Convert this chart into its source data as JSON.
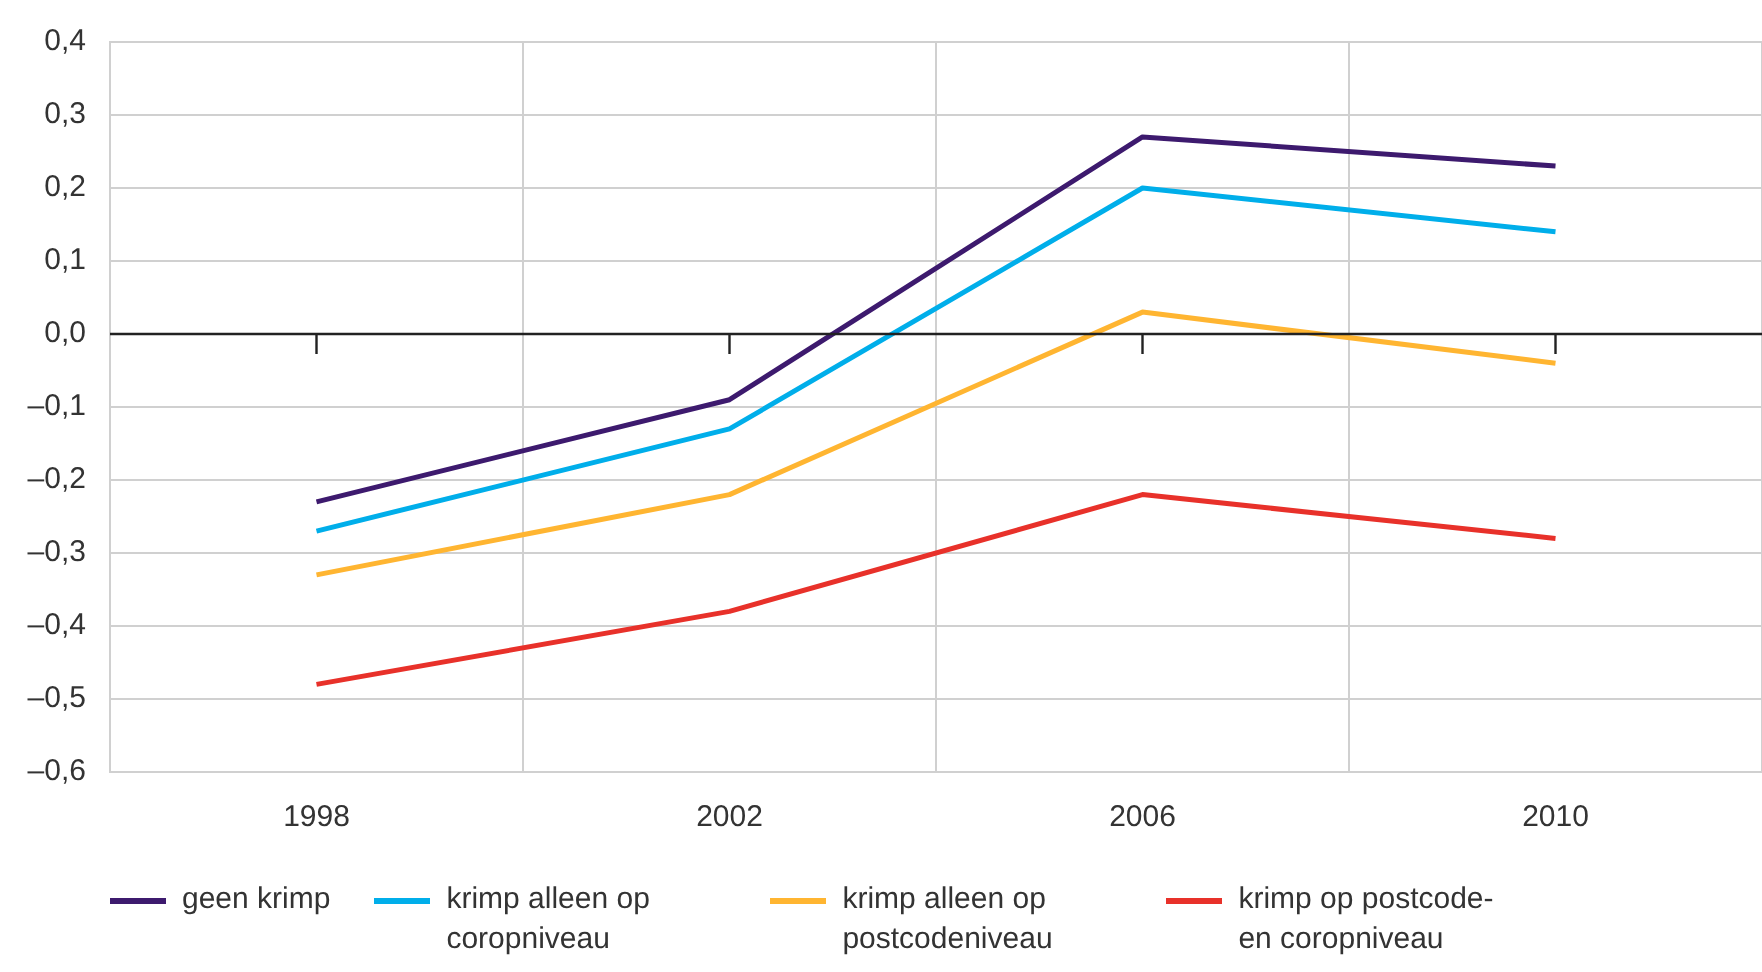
{
  "chart_data": {
    "type": "line",
    "categories": [
      "1998",
      "2002",
      "2006",
      "2010"
    ],
    "series": [
      {
        "name": "geen krimp",
        "color": "#3d1a6e",
        "values": [
          -0.23,
          -0.09,
          0.27,
          0.23
        ]
      },
      {
        "name": "krimp alleen op coropniveau",
        "color": "#00aeea",
        "values": [
          -0.27,
          -0.13,
          0.2,
          0.14
        ]
      },
      {
        "name": "krimp alleen op postcodeniveau",
        "color": "#ffb531",
        "values": [
          -0.33,
          -0.22,
          0.03,
          -0.04
        ]
      },
      {
        "name": "krimp op postcode- en coropniveau",
        "color": "#e8312a",
        "values": [
          -0.48,
          -0.38,
          -0.22,
          -0.28
        ]
      }
    ],
    "ylim": [
      -0.6,
      0.4
    ],
    "yticks": [
      {
        "value": -0.6,
        "label": "–0,6"
      },
      {
        "value": -0.5,
        "label": "–0,5"
      },
      {
        "value": -0.4,
        "label": "–0,4"
      },
      {
        "value": -0.3,
        "label": "–0,3"
      },
      {
        "value": -0.2,
        "label": "–0,2"
      },
      {
        "value": -0.1,
        "label": "–0,1"
      },
      {
        "value": 0,
        "label": "0,0"
      },
      {
        "value": 0.1,
        "label": "0,1"
      },
      {
        "value": 0.2,
        "label": "0,2"
      },
      {
        "value": 0.3,
        "label": "0,3"
      },
      {
        "value": 0.4,
        "label": "0,4"
      }
    ],
    "ref_lines": [
      {
        "axis": "y",
        "value": 0,
        "color": "#222222"
      }
    ],
    "grid": true,
    "legend": "bottom",
    "marker": "none",
    "line_style": "solid"
  }
}
